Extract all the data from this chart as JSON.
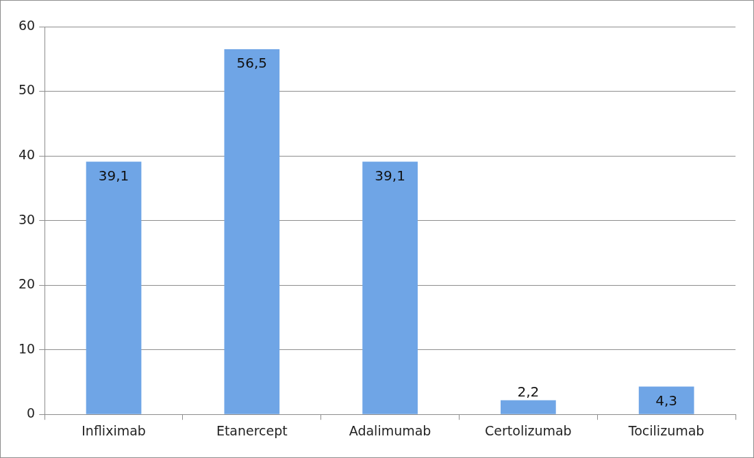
{
  "chart_data": {
    "type": "bar",
    "categories": [
      "Infliximab",
      "Etanercept",
      "Adalimumab",
      "Certolizumab",
      "Tocilizumab"
    ],
    "values": [
      39.1,
      56.5,
      39.1,
      2.2,
      4.3
    ],
    "value_labels": [
      "39,1",
      "56,5",
      "39,1",
      "2,2",
      "4,3"
    ],
    "color": "#6fa5e6",
    "ylim": [
      0,
      60
    ],
    "yticks": [
      0,
      10,
      20,
      30,
      40,
      50,
      60
    ],
    "grid": "y",
    "legend": false
  }
}
